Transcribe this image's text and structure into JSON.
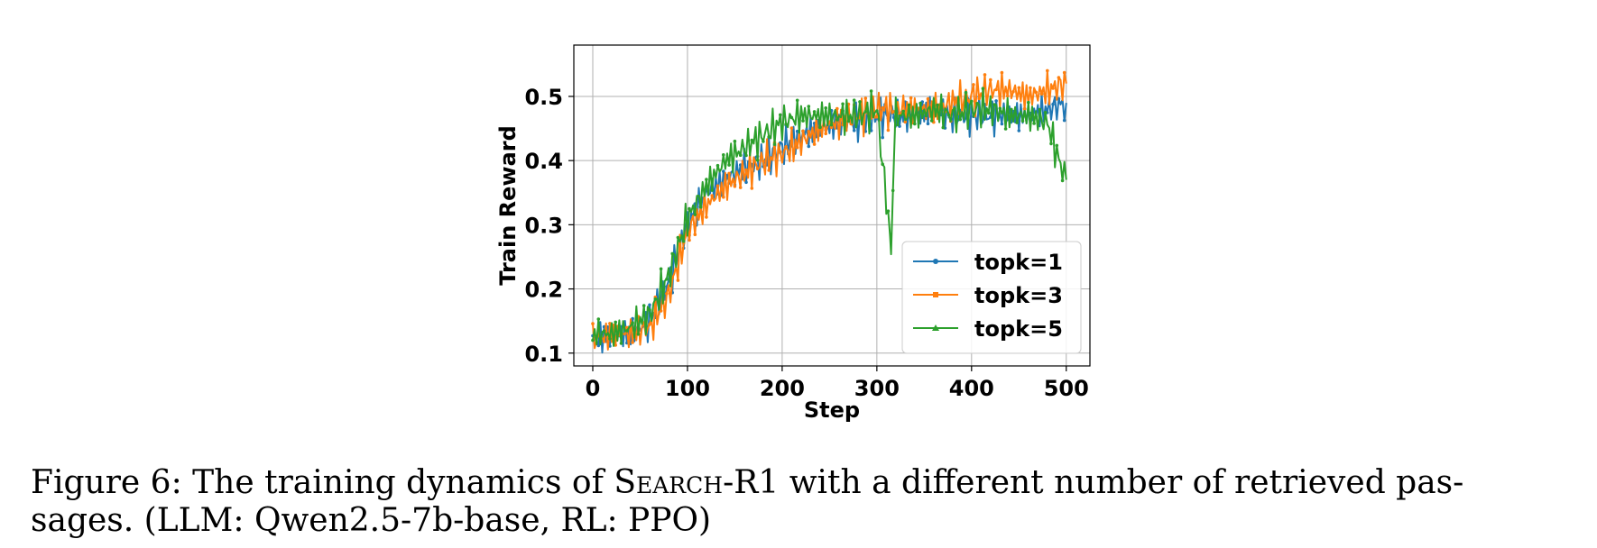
{
  "chart_data": {
    "type": "line",
    "xlabel": "Step",
    "ylabel": "Train Reward",
    "xlim": [
      -20,
      525
    ],
    "ylim": [
      0.08,
      0.58
    ],
    "xticks": [
      0,
      100,
      200,
      300,
      400,
      500
    ],
    "xtick_labels": [
      "0",
      "100",
      "200",
      "300",
      "400",
      "500"
    ],
    "yticks": [
      0.1,
      0.2,
      0.3,
      0.4,
      0.5
    ],
    "ytick_labels": [
      "0.1",
      "0.2",
      "0.3",
      "0.4",
      "0.5"
    ],
    "grid": true,
    "legend_position": "lower-right",
    "series": [
      {
        "name": "topk=1",
        "color": "#1f77b4",
        "marker": "circle",
        "x": [
          0,
          20,
          40,
          60,
          80,
          100,
          120,
          140,
          160,
          180,
          200,
          220,
          240,
          260,
          280,
          300,
          320,
          340,
          360,
          380,
          400,
          420,
          440,
          460,
          480,
          500
        ],
        "y": [
          0.12,
          0.13,
          0.13,
          0.15,
          0.21,
          0.3,
          0.35,
          0.37,
          0.39,
          0.4,
          0.42,
          0.44,
          0.45,
          0.46,
          0.46,
          0.47,
          0.47,
          0.47,
          0.48,
          0.47,
          0.47,
          0.47,
          0.47,
          0.47,
          0.48,
          0.49
        ]
      },
      {
        "name": "topk=3",
        "color": "#ff7f0e",
        "marker": "square",
        "x": [
          0,
          20,
          40,
          60,
          80,
          100,
          120,
          140,
          160,
          180,
          200,
          220,
          240,
          260,
          280,
          300,
          320,
          340,
          360,
          380,
          400,
          420,
          440,
          460,
          480,
          500
        ],
        "y": [
          0.12,
          0.13,
          0.13,
          0.14,
          0.19,
          0.29,
          0.33,
          0.36,
          0.38,
          0.4,
          0.41,
          0.43,
          0.45,
          0.46,
          0.47,
          0.48,
          0.48,
          0.48,
          0.48,
          0.49,
          0.5,
          0.51,
          0.51,
          0.5,
          0.51,
          0.52
        ]
      },
      {
        "name": "topk=5",
        "color": "#2ca02c",
        "marker": "triangle",
        "x": [
          0,
          20,
          40,
          60,
          80,
          100,
          120,
          140,
          160,
          180,
          200,
          220,
          240,
          260,
          280,
          300,
          315,
          320,
          340,
          360,
          380,
          400,
          420,
          440,
          460,
          480,
          490,
          500
        ],
        "y": [
          0.13,
          0.13,
          0.14,
          0.16,
          0.22,
          0.31,
          0.36,
          0.4,
          0.42,
          0.44,
          0.46,
          0.47,
          0.47,
          0.47,
          0.47,
          0.48,
          0.27,
          0.47,
          0.47,
          0.48,
          0.47,
          0.48,
          0.48,
          0.47,
          0.47,
          0.46,
          0.41,
          0.37
        ]
      }
    ]
  },
  "caption": {
    "prefix": "Figure 6: The training dynamics of ",
    "name_sc": "Search",
    "name_suffix": "-R1",
    "rest_line1": " with a different number of retrieved pas-",
    "line2": "sages. (LLM: Qwen2.5-7b-base, RL: PPO)"
  }
}
